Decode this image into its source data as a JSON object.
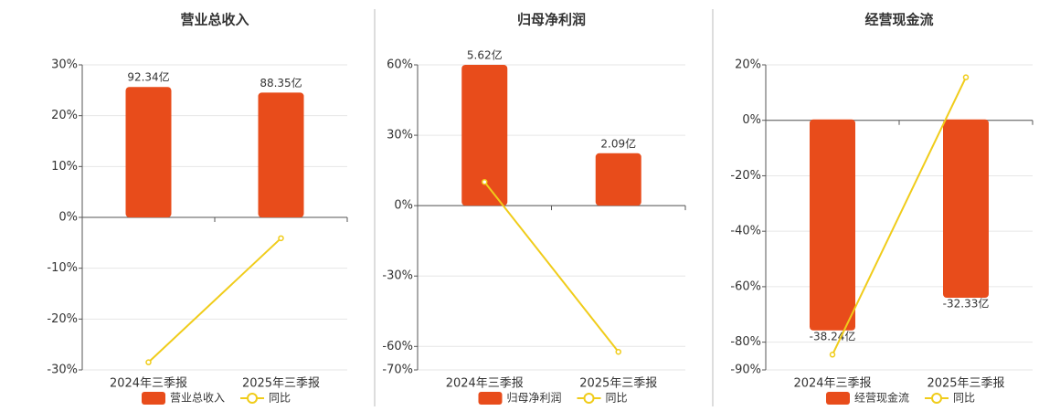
{
  "chart_data": [
    {
      "type": "bar-line",
      "title": "营业总收入",
      "categories": [
        "2024年三季报",
        "2025年三季报"
      ],
      "series": [
        {
          "name": "营业总收入",
          "color": "#e84c1b",
          "kind": "bar",
          "axis": "y2",
          "values": [
            92.34,
            88.35
          ],
          "value_labels": [
            "92.34亿",
            "88.35亿"
          ]
        },
        {
          "name": "同比",
          "color": "#f0cc1a",
          "kind": "line",
          "values": [
            -28.5,
            -4.1
          ]
        }
      ],
      "ylim": [
        -30,
        30
      ],
      "yticks": [
        {
          "value": 30,
          "label": "30%"
        },
        {
          "value": 20,
          "label": "20%"
        },
        {
          "value": 10,
          "label": "10%"
        },
        {
          "value": 0,
          "label": "0%"
        },
        {
          "value": -10,
          "label": "-10%"
        },
        {
          "value": -20,
          "label": "-20%"
        },
        {
          "value": -30,
          "label": "-30%"
        }
      ],
      "y2lim": [
        -108,
        108
      ],
      "grid": true
    },
    {
      "type": "bar-line",
      "title": "归母净利润",
      "categories": [
        "2024年三季报",
        "2025年三季报"
      ],
      "series": [
        {
          "name": "归母净利润",
          "color": "#e84c1b",
          "kind": "bar",
          "axis": "y2",
          "values": [
            5.62,
            2.09
          ],
          "value_labels": [
            "5.62亿",
            "2.09亿"
          ]
        },
        {
          "name": "同比",
          "color": "#f0cc1a",
          "kind": "line",
          "values": [
            10.1,
            -62.3
          ]
        }
      ],
      "ylim": [
        -70,
        60
      ],
      "yticks": [
        {
          "value": 60,
          "label": "60%"
        },
        {
          "value": 30,
          "label": "30%"
        },
        {
          "value": 0,
          "label": "0%"
        },
        {
          "value": -30,
          "label": "-30%"
        },
        {
          "value": -60,
          "label": "-60%"
        },
        {
          "value": -70,
          "label": "-70%"
        }
      ],
      "y2lim": [
        -6.56,
        5.62
      ],
      "grid": true
    },
    {
      "type": "bar-line",
      "title": "经营现金流",
      "categories": [
        "2024年三季报",
        "2025年三季报"
      ],
      "series": [
        {
          "name": "经营现金流",
          "color": "#e84c1b",
          "kind": "bar",
          "axis": "y2",
          "values": [
            -38.24,
            -32.33
          ],
          "value_labels": [
            "-38.24亿",
            "-32.33亿"
          ]
        },
        {
          "name": "同比",
          "color": "#f0cc1a",
          "kind": "line",
          "values": [
            -84.5,
            15.5
          ]
        }
      ],
      "ylim": [
        -90,
        20
      ],
      "yticks": [
        {
          "value": 20,
          "label": "20%"
        },
        {
          "value": 0,
          "label": "0%"
        },
        {
          "value": -20,
          "label": "-20%"
        },
        {
          "value": -40,
          "label": "-40%"
        },
        {
          "value": -60,
          "label": "-60%"
        },
        {
          "value": -80,
          "label": "-80%"
        },
        {
          "value": -90,
          "label": "-90%"
        }
      ],
      "y2lim": [
        -45.4,
        9.9
      ],
      "grid": true
    }
  ]
}
